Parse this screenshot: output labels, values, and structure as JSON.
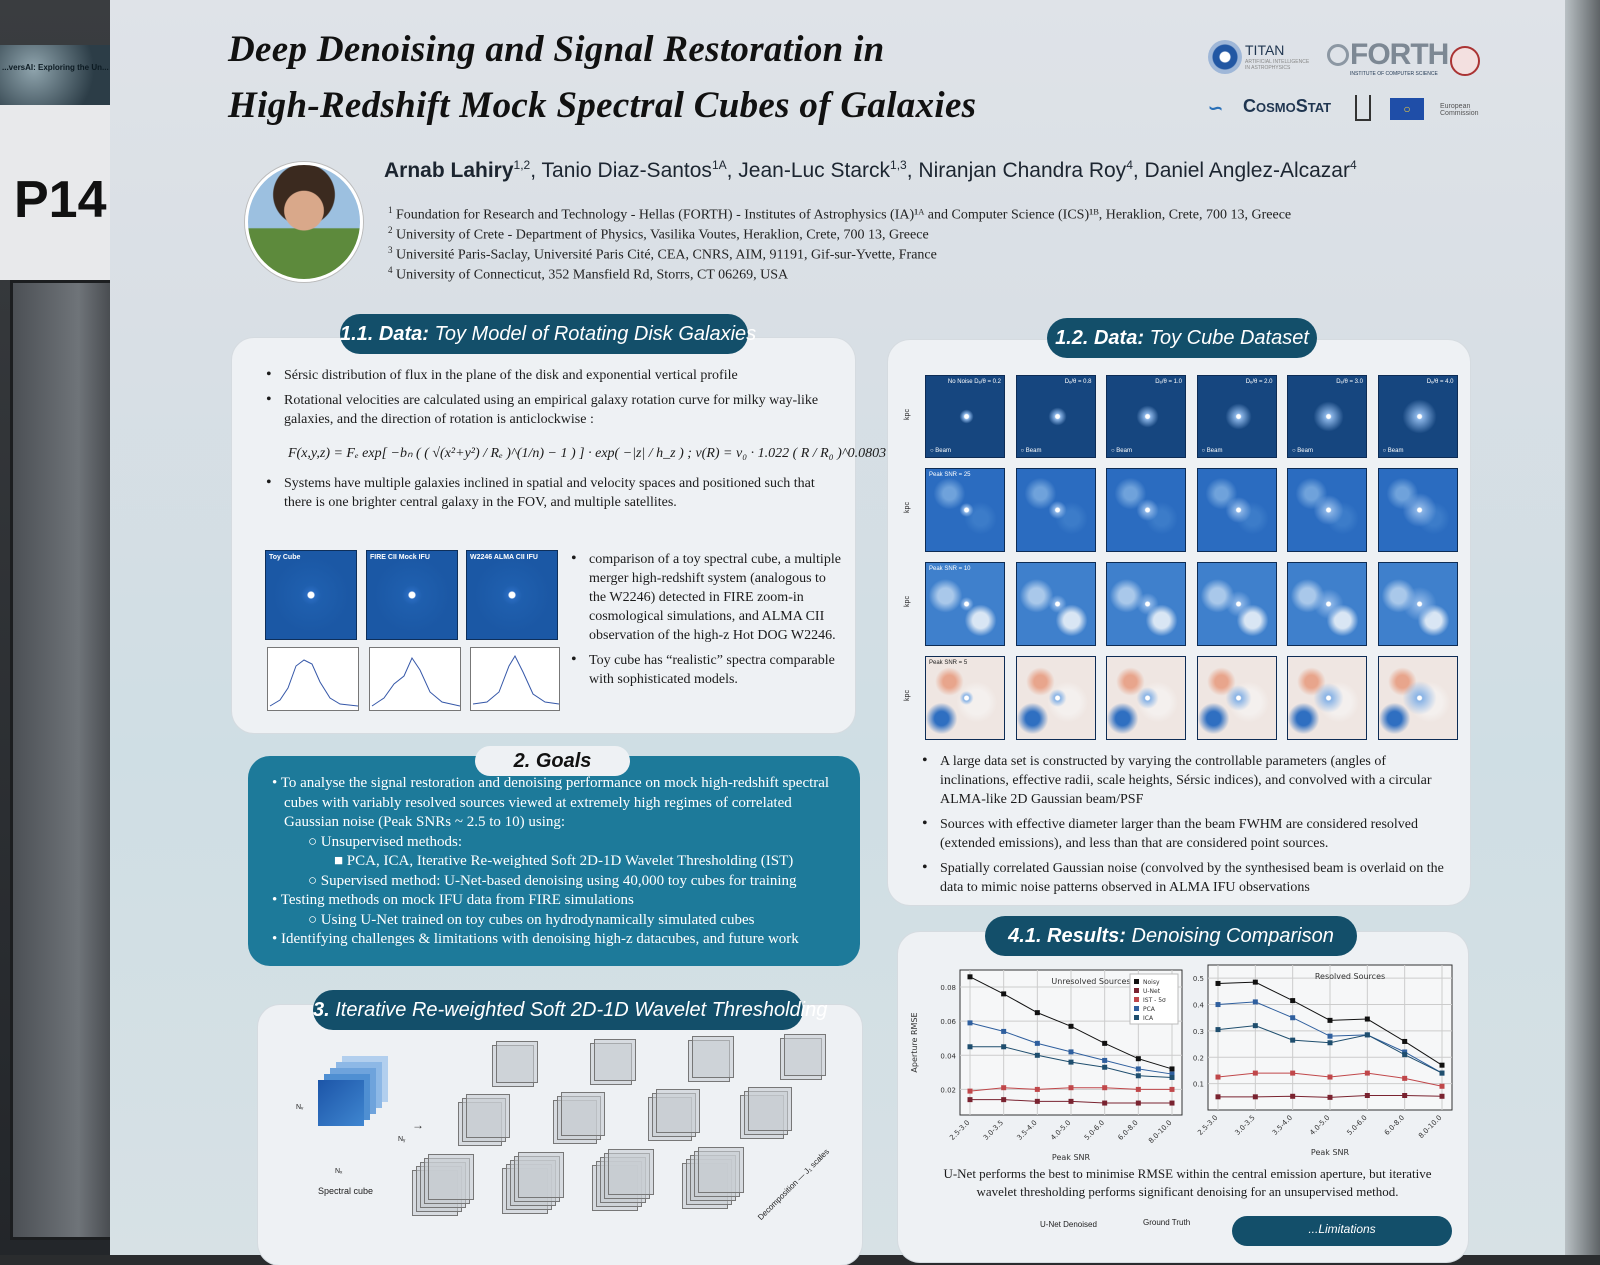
{
  "booth": {
    "banner": "...versAI: Exploring the Un... with Artificial Intelligen...",
    "poster_number": "P14"
  },
  "title": {
    "line1": "Deep Denoising and Signal Restoration in",
    "line2": "High-Redshift Mock Spectral Cubes of Galaxies"
  },
  "logos": {
    "titan": "TITAN",
    "titan_sub": "ARTIFICIAL INTELLIGENCE IN ASTROPHYSICS",
    "forth": "FORTH",
    "forth_sub": "INSTITUTE OF COMPUTER SCIENCE",
    "cosmostat": "CosmoStat",
    "ec": "European Commission"
  },
  "authors": [
    {
      "name": "Arnab Lahiry",
      "sup": "1,2"
    },
    {
      "name": "Tanio Diaz-Santos",
      "sup": "1A"
    },
    {
      "name": "Jean-Luc Starck",
      "sup": "1,3"
    },
    {
      "name": "Niranjan Chandra Roy",
      "sup": "4"
    },
    {
      "name": "Daniel Anglez-Alcazar",
      "sup": "4"
    }
  ],
  "affiliations": [
    {
      "sup": "1",
      "text": "Foundation for Research and Technology - Hellas (FORTH) - Institutes of Astrophysics (IA)¹ᴬ and Computer Science (ICS)¹ᴮ, Heraklion, Crete, 700 13, Greece"
    },
    {
      "sup": "2",
      "text": "University of Crete - Department of Physics, Vasilika Voutes, Heraklion, Crete, 700 13, Greece"
    },
    {
      "sup": "3",
      "text": "Université Paris-Saclay, Université Paris Cité, CEA, CNRS, AIM, 91191, Gif-sur-Yvette, France"
    },
    {
      "sup": "4",
      "text": "University of Connecticut, 352 Mansfield Rd, Storrs, CT 06269, USA"
    }
  ],
  "s11": {
    "num": "1.1. Data:",
    "title": "Toy Model of Rotating Disk Galaxies",
    "b1": "Sérsic distribution of flux in the plane of the disk and exponential vertical profile",
    "b2": "Rotational velocities are calculated using an empirical galaxy rotation curve for milky way-like galaxies, and the direction of rotation is anticlockwise :",
    "formula": "F(x,y,z) = Fₑ exp[ −bₙ ( ( √(x²+y²) / Rₑ )^(1/n) − 1 ) ] · exp( −|z| / h_z )   ;   v(R) = v₀ · 1.022 ( R / R₀ )^0.0803",
    "b3": "Systems have multiple galaxies inclined in spatial and velocity spaces and positioned such that there is one brighter central galaxy in the FOV, and multiple satellites.",
    "img_labels": [
      "Toy Cube",
      "FIRE CII Mock IFU",
      "W2246 ALMA CII IFU"
    ],
    "b4": "comparison of a toy spectral cube, a multiple merger high-redshift system (analogous to the W2246) detected in FIRE zoom-in cosmological simulations, and ALMA CII observation of the high-z Hot DOG W2246.",
    "b5": "Toy cube has “realistic” spectra comparable with sophisticated models."
  },
  "s12": {
    "num": "1.2. Data:",
    "title": "Toy Cube Dataset",
    "col_labels": [
      "No Noise   Dₑ/θ = 0.2",
      "Dₑ/θ = 0.8",
      "Dₑ/θ = 1.0",
      "Dₑ/θ = 2.0",
      "Dₑ/θ = 3.0",
      "Dₑ/θ = 4.0"
    ],
    "row_labels": [
      "",
      "Peak SNR = 25",
      "Peak SNR = 10",
      "Peak SNR = 5"
    ],
    "beam": "○ Beam",
    "axis": "kpc",
    "b1": "A large data set is constructed by varying the controllable parameters (angles of inclinations, effective radii, scale heights, Sérsic indices), and convolved with a circular ALMA-like 2D Gaussian beam/PSF",
    "b2": "Sources with effective diameter larger than the beam FWHM are considered resolved (extended emissions), and less than that are considered point sources.",
    "b3": "Spatially correlated Gaussian noise (convolved by the synthesised beam is overlaid on the data to mimic noise patterns observed in ALMA IFU observations"
  },
  "goals": {
    "title": "2. Goals",
    "lines": [
      "• To analyse the signal restoration and denoising performance on mock high-redshift spectral cubes with variably resolved sources viewed at extremely high regimes of correlated Gaussian noise (Peak SNRs ~ 2.5 to 10) using:",
      "○ Unsupervised methods:",
      "■ PCA, ICA, Iterative Re-weighted Soft 2D-1D Wavelet Thresholding (IST)",
      "○ Supervised method: U-Net-based denoising using 40,000 toy cubes for training",
      "• Testing methods on mock IFU data from FIRE simulations",
      "○ Using U-Net trained on toy cubes on hydrodynamically simulated cubes",
      "• Identifying challenges & limitations with denoising high-z datacubes, and future work"
    ]
  },
  "s3": {
    "num": "3.",
    "title": "Iterative Re-weighted Soft 2D-1D Wavelet Thresholding",
    "cube_label": "Spectral cube",
    "nx": "Nₓ",
    "ny": "Nᵧ",
    "nv": "Nᵥ",
    "diag": "Decomposition — J₁ scales"
  },
  "s41": {
    "num": "4.1. Results:",
    "title": "Denoising Comparison",
    "caption": "U-Net performs the best to minimise RMSE within the central emission aperture, but iterative wavelet thresholding performs significant denoising for an unsupervised method.",
    "bottom_labels": [
      "U-Net Denoised",
      "Ground Truth"
    ],
    "next_pill": "...Limitations"
  },
  "chart_data": [
    {
      "type": "line",
      "title": "Unresolved Sources",
      "xlabel": "Peak SNR",
      "ylabel": "Aperture RMSE",
      "ylim": [
        0.005,
        0.09
      ],
      "yticks": [
        0.02,
        0.04,
        0.06,
        0.08
      ],
      "grid": true,
      "legend": "top-right",
      "categories": [
        "2.5-3.0",
        "3.0-3.5",
        "3.5-4.0",
        "4.0-5.0",
        "5.0-6.0",
        "6.0-8.0",
        "8.0-10.0"
      ],
      "series": [
        {
          "name": "Noisy",
          "color": "#111111",
          "values": [
            0.086,
            0.076,
            0.065,
            0.057,
            0.047,
            0.038,
            0.032
          ]
        },
        {
          "name": "U-Net",
          "color": "#7a2330",
          "values": [
            0.014,
            0.014,
            0.013,
            0.013,
            0.012,
            0.012,
            0.012
          ]
        },
        {
          "name": "IST - 5σ",
          "color": "#c0474a",
          "values": [
            0.019,
            0.021,
            0.02,
            0.021,
            0.021,
            0.02,
            0.02
          ]
        },
        {
          "name": "PCA",
          "color": "#2f5f9e",
          "values": [
            0.059,
            0.054,
            0.047,
            0.042,
            0.037,
            0.032,
            0.029
          ]
        },
        {
          "name": "ICA",
          "color": "#1f4e6e",
          "values": [
            0.045,
            0.045,
            0.04,
            0.036,
            0.033,
            0.028,
            0.027
          ]
        }
      ]
    },
    {
      "type": "line",
      "title": "Resolved Sources",
      "xlabel": "Peak SNR",
      "ylabel": "",
      "ylim": [
        0.0,
        0.55
      ],
      "yticks": [
        0.1,
        0.2,
        0.3,
        0.4,
        0.5
      ],
      "grid": true,
      "categories": [
        "2.5-3.0",
        "3.0-3.5",
        "3.5-4.0",
        "4.0-5.0",
        "5.0-6.0",
        "6.0-8.0",
        "8.0-10.0"
      ],
      "series": [
        {
          "name": "Noisy",
          "color": "#111111",
          "values": [
            0.48,
            0.485,
            0.415,
            0.34,
            0.345,
            0.26,
            0.17
          ]
        },
        {
          "name": "U-Net",
          "color": "#7a2330",
          "values": [
            0.05,
            0.05,
            0.052,
            0.048,
            0.055,
            0.055,
            0.052
          ]
        },
        {
          "name": "IST - 5σ",
          "color": "#c0474a",
          "values": [
            0.125,
            0.14,
            0.14,
            0.125,
            0.14,
            0.12,
            0.09
          ]
        },
        {
          "name": "PCA",
          "color": "#2f5f9e",
          "values": [
            0.4,
            0.41,
            0.35,
            0.28,
            0.285,
            0.22,
            0.14
          ]
        },
        {
          "name": "ICA",
          "color": "#1f4e6e",
          "values": [
            0.305,
            0.32,
            0.265,
            0.255,
            0.285,
            0.21,
            0.14
          ]
        }
      ]
    }
  ]
}
